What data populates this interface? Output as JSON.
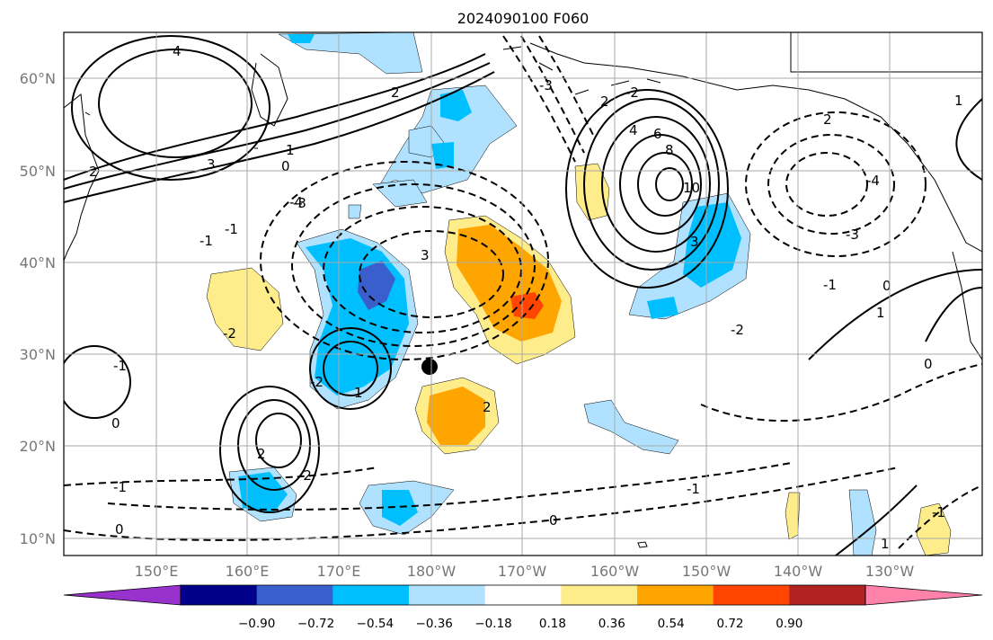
{
  "title": "2024090100 F060",
  "map": {
    "projection": "PlateCarree",
    "lon_range": [
      140,
      238
    ],
    "lat_range": [
      8,
      65
    ],
    "lat_ticks": [
      "10°N",
      "20°N",
      "30°N",
      "40°N",
      "50°N",
      "60°N"
    ],
    "lon_ticks": [
      "150°E",
      "160°E",
      "170°E",
      "180°W",
      "170°W",
      "160°W",
      "150°W",
      "140°W",
      "130°W"
    ],
    "gridlines": true,
    "marker": "storm-center-dot",
    "contour_labels": [
      "4",
      "2",
      "0",
      "-1",
      "1",
      "3",
      "-2",
      "-3",
      "6",
      "8",
      "10",
      "2",
      "0",
      "-1",
      "-2",
      "1",
      "-1",
      "0",
      "2",
      "-2",
      "0",
      "1",
      "-1",
      "0",
      "-1",
      "-3",
      "-4",
      "1",
      "0",
      "-2",
      "2",
      "3",
      "4",
      "3",
      "2",
      "1",
      "-1",
      "2",
      "-1",
      "-2",
      "-3",
      "-4"
    ]
  },
  "colorbar": {
    "labels": [
      "−0.90",
      "−0.72",
      "−0.54",
      "−0.36",
      "−0.18",
      "0.18",
      "0.36",
      "0.54",
      "0.72",
      "0.90"
    ],
    "colors": [
      "#9932cc",
      "#00008b",
      "#3a5fcd",
      "#00bfff",
      "#b0e2ff",
      "#ffffff",
      "#ffec8b",
      "#ffa500",
      "#ff4500",
      "#b22222",
      "#ff82ab"
    ]
  }
}
